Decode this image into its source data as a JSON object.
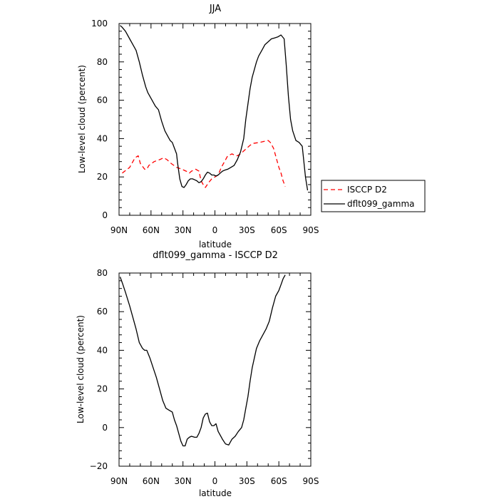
{
  "chart_data": [
    {
      "type": "line",
      "title": "JJA",
      "xlabel": "latitude",
      "ylabel": "Low-level cloud (percent)",
      "xlim": [
        90,
        -90
      ],
      "ylim": [
        0,
        100
      ],
      "xticks": [
        90,
        60,
        30,
        0,
        -30,
        -60,
        -90
      ],
      "xtick_labels": [
        "90N",
        "60N",
        "30N",
        "0",
        "30S",
        "60S",
        "90S"
      ],
      "yticks": [
        0,
        20,
        40,
        60,
        80,
        100
      ],
      "ytick_labels": [
        "0",
        "20",
        "40",
        "60",
        "80",
        "100"
      ],
      "legend": {
        "position": "right"
      },
      "series": [
        {
          "name": "ISCCP D2",
          "color": "#ff0000",
          "dash": "dashed",
          "x": [
            87,
            80,
            75,
            72,
            70,
            66,
            64,
            62,
            57,
            52,
            48,
            45,
            41,
            36,
            31,
            27,
            24,
            22,
            18,
            15,
            13,
            11,
            9,
            6,
            3,
            0,
            -3,
            -6,
            -9,
            -12,
            -16,
            -18,
            -21,
            -24,
            -28,
            -33,
            -36,
            -42,
            -46,
            -50,
            -52,
            -55,
            -58,
            -60,
            -62,
            -64,
            -66
          ],
          "y": [
            22,
            25,
            30,
            31,
            27,
            24,
            24,
            26,
            28,
            29,
            30,
            29,
            27,
            25,
            24,
            23,
            22,
            23,
            24,
            23,
            18,
            16,
            14.5,
            17,
            19,
            20,
            21,
            25,
            28,
            31,
            32,
            31.5,
            31,
            32,
            34,
            36.5,
            37.5,
            38,
            38.5,
            39,
            38,
            35,
            29,
            25,
            22,
            18,
            15
          ]
        },
        {
          "name": "dflt099_gamma",
          "color": "#000000",
          "dash": "solid",
          "x": [
            89,
            87,
            84,
            80,
            77,
            74,
            71,
            68,
            65,
            63,
            61,
            59,
            56,
            53,
            50,
            47,
            44,
            42,
            40,
            38,
            36,
            35,
            34,
            33,
            31,
            29,
            27,
            25,
            23,
            21,
            19,
            17,
            15,
            13,
            11,
            9,
            7,
            5,
            3,
            1,
            -1,
            -3,
            -5,
            -7,
            -9,
            -12,
            -15,
            -18,
            -21,
            -24,
            -27,
            -29,
            -31,
            -33,
            -35,
            -37,
            -39,
            -41,
            -44,
            -47,
            -50,
            -53,
            -56,
            -59,
            -62,
            -65,
            -67,
            -69,
            -71,
            -73,
            -76,
            -79,
            -82,
            -85,
            -87
          ],
          "y": [
            99,
            98,
            96,
            92,
            89,
            86,
            80,
            73,
            67,
            64,
            62,
            60,
            57,
            55,
            49,
            44,
            41,
            39,
            38,
            35,
            32,
            27,
            23,
            19,
            15,
            14.5,
            16,
            18,
            19,
            19,
            18.5,
            18,
            17,
            17.5,
            19,
            21,
            22.5,
            22,
            21,
            21,
            20.5,
            21,
            22,
            23,
            23.5,
            24,
            25,
            26,
            29,
            33,
            40,
            50,
            58,
            66,
            72,
            76,
            80,
            83,
            86,
            89,
            90.5,
            92,
            92.5,
            93,
            94,
            92,
            78,
            62,
            50,
            44,
            39,
            38,
            36,
            20,
            13
          ]
        }
      ]
    },
    {
      "type": "line",
      "title": "dflt099_gamma - ISCCP D2",
      "xlabel": "latitude",
      "ylabel": "Low-level cloud (percent)",
      "xlim": [
        90,
        -90
      ],
      "ylim": [
        -20,
        80
      ],
      "xticks": [
        90,
        60,
        30,
        0,
        -30,
        -60,
        -90
      ],
      "xtick_labels": [
        "90N",
        "60N",
        "30N",
        "0",
        "30S",
        "60S",
        "90S"
      ],
      "yticks": [
        -20,
        0,
        20,
        40,
        60,
        80
      ],
      "ytick_labels": [
        "−20",
        "0",
        "20",
        "40",
        "60",
        "80"
      ],
      "series": [
        {
          "color": "#000000",
          "dash": "solid",
          "x": [
            89,
            87,
            84,
            80,
            77,
            74,
            71,
            68,
            66,
            64,
            61,
            58,
            55,
            52,
            49,
            46,
            43,
            40,
            38,
            36,
            34,
            32,
            30,
            28,
            26,
            24,
            22,
            19,
            17,
            15,
            13,
            11,
            9,
            7,
            5,
            3,
            1,
            -1,
            -3,
            -5,
            -7,
            -10,
            -13,
            -16,
            -19,
            -22,
            -25,
            -27,
            -29,
            -31,
            -33,
            -35,
            -37,
            -39,
            -42,
            -45,
            -48,
            -51,
            -54,
            -57,
            -60,
            -62,
            -64,
            -66
          ],
          "y": [
            78,
            75,
            70,
            63,
            57,
            51,
            44,
            41,
            40,
            40,
            36,
            31,
            26,
            20,
            14,
            10,
            9,
            8,
            4,
            1,
            -3,
            -7,
            -9.5,
            -9.5,
            -6,
            -5,
            -4.5,
            -5,
            -5,
            -3,
            0,
            5,
            7,
            7.5,
            3,
            1,
            1,
            2,
            -2,
            -4,
            -6,
            -8.5,
            -9,
            -6,
            -4.5,
            -2,
            0,
            4,
            10,
            16,
            24,
            31,
            36,
            41,
            45,
            48,
            51,
            55,
            62,
            68,
            71,
            74,
            77,
            79
          ]
        }
      ]
    }
  ]
}
